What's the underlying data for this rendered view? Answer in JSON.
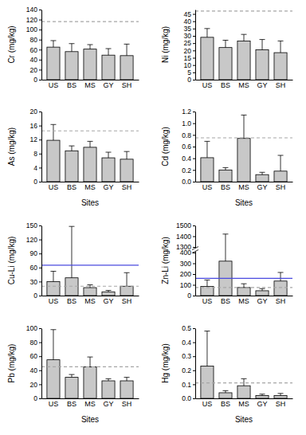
{
  "chart_data": [
    {
      "type": "bar",
      "ylabel": "Cr (mg/kg)",
      "categories": [
        "US",
        "BS",
        "MS",
        "GY",
        "SH"
      ],
      "values": [
        65,
        56,
        61,
        49,
        48
      ],
      "errors": [
        13,
        16,
        9,
        13,
        23
      ],
      "color": "#c8c8c8",
      "ylim": [
        0,
        140
      ],
      "yticks": [
        0,
        20,
        40,
        60,
        80,
        100,
        120,
        140
      ],
      "reference_lines": [
        {
          "value": 116,
          "line_style": "dashed",
          "color": "#a6a6a6"
        }
      ]
    },
    {
      "type": "bar",
      "ylabel": "Ni (mg/kg)",
      "categories": [
        "US",
        "BS",
        "MS",
        "GY",
        "SH"
      ],
      "values": [
        29,
        22,
        26.5,
        20.5,
        18.5
      ],
      "errors": [
        6,
        5,
        4.5,
        7,
        8
      ],
      "color": "#c8c8c8",
      "ylim": [
        0,
        48
      ],
      "yticks": [
        0,
        5,
        10,
        15,
        20,
        25,
        30,
        35,
        40,
        45
      ],
      "reference_lines": [
        {
          "value": 47,
          "line_style": "dashed",
          "color": "#a6a6a6"
        }
      ]
    },
    {
      "type": "bar",
      "ylabel": "As (mg/kg)",
      "xlabel": "Sites",
      "categories": [
        "US",
        "BS",
        "MS",
        "GY",
        "SH"
      ],
      "values": [
        11.8,
        8.8,
        9.8,
        6.8,
        6.4
      ],
      "errors": [
        4.5,
        1.4,
        1.7,
        1.6,
        2.2
      ],
      "color": "#c8c8c8",
      "ylim": [
        0,
        20
      ],
      "yticks": [
        0,
        4,
        8,
        12,
        16,
        20
      ],
      "reference_lines": [
        {
          "value": 14.5,
          "line_style": "dashed",
          "color": "#a6a6a6"
        }
      ]
    },
    {
      "type": "bar",
      "ylabel": "Cd (mg/kg)",
      "xlabel": "Sites",
      "categories": [
        "US",
        "BS",
        "MS",
        "GY",
        "SH"
      ],
      "values": [
        0.41,
        0.2,
        0.74,
        0.12,
        0.18
      ],
      "errors": [
        0.28,
        0.04,
        0.4,
        0.04,
        0.27
      ],
      "color": "#c8c8c8",
      "ylim": [
        0,
        1.2
      ],
      "yticks": [
        {
          "value": 0,
          "label": "0.0"
        },
        0.2,
        0.4,
        0.6,
        0.8,
        {
          "value": 1,
          "label": "1.0"
        },
        1.2
      ],
      "reference_lines": [
        {
          "value": 0.75,
          "line_style": "dashed",
          "color": "#a6a6a6"
        }
      ]
    },
    {
      "type": "bar",
      "ylabel": "Cu-Li (mg/kg)",
      "categories": [
        "US",
        "BS",
        "MS",
        "GY",
        "SH"
      ],
      "values": [
        30,
        38,
        17,
        8,
        20
      ],
      "errors": [
        22,
        110,
        6,
        3,
        29
      ],
      "color": "#c8c8c8",
      "ylim": [
        0,
        150
      ],
      "yticks": [
        0,
        30,
        60,
        90,
        120,
        150
      ],
      "reference_lines": [
        {
          "value": 20,
          "line_style": "dashed",
          "color": "#a6a6a6"
        },
        {
          "value": 65,
          "line_style": "solid",
          "color": "#4a4adf"
        }
      ]
    },
    {
      "type": "bar",
      "ylabel": "Zn-Li (mg/kg)",
      "categories": [
        "US",
        "BS",
        "MS",
        "GY",
        "SH"
      ],
      "values": [
        85,
        320,
        75,
        45,
        135
      ],
      "errors": [
        60,
        1100,
        35,
        20,
        80
      ],
      "color": "#c8c8c8",
      "ylim": [
        0,
        1500
      ],
      "yticks": [
        0,
        100,
        200,
        300,
        400,
        1300,
        1400,
        1500
      ],
      "reference_lines": [
        {
          "value": 75,
          "line_style": "dashed",
          "color": "#a6a6a6"
        },
        {
          "value": 160,
          "line_style": "solid",
          "color": "#4a4adf"
        }
      ]
    },
    {
      "type": "bar",
      "ylabel": "Pb (mg/kg)",
      "xlabel": "Sites",
      "categories": [
        "US",
        "BS",
        "MS",
        "GY",
        "SH"
      ],
      "values": [
        55,
        30,
        45,
        25,
        25
      ],
      "errors": [
        43,
        4,
        14,
        3,
        5
      ],
      "color": "#c8c8c8",
      "ylim": [
        0,
        100
      ],
      "yticks": [
        0,
        20,
        40,
        60,
        80,
        100
      ],
      "reference_lines": [
        {
          "value": 45,
          "line_style": "dashed",
          "color": "#a6a6a6"
        }
      ]
    },
    {
      "type": "bar",
      "ylabel": "Hg (mg/kg)",
      "xlabel": "Sites",
      "categories": [
        "US",
        "BS",
        "MS",
        "GY",
        "SH"
      ],
      "values": [
        0.23,
        0.04,
        0.09,
        0.02,
        0.02
      ],
      "errors": [
        0.25,
        0.015,
        0.05,
        0.01,
        0.015
      ],
      "color": "#c8c8c8",
      "ylim": [
        0,
        0.5
      ],
      "yticks": [
        {
          "value": 0,
          "label": "0.0"
        },
        0.1,
        0.2,
        0.3,
        0.4,
        0.5
      ],
      "reference_lines": [
        {
          "value": 0.11,
          "line_style": "dashed",
          "color": "#a6a6a6"
        }
      ]
    }
  ]
}
